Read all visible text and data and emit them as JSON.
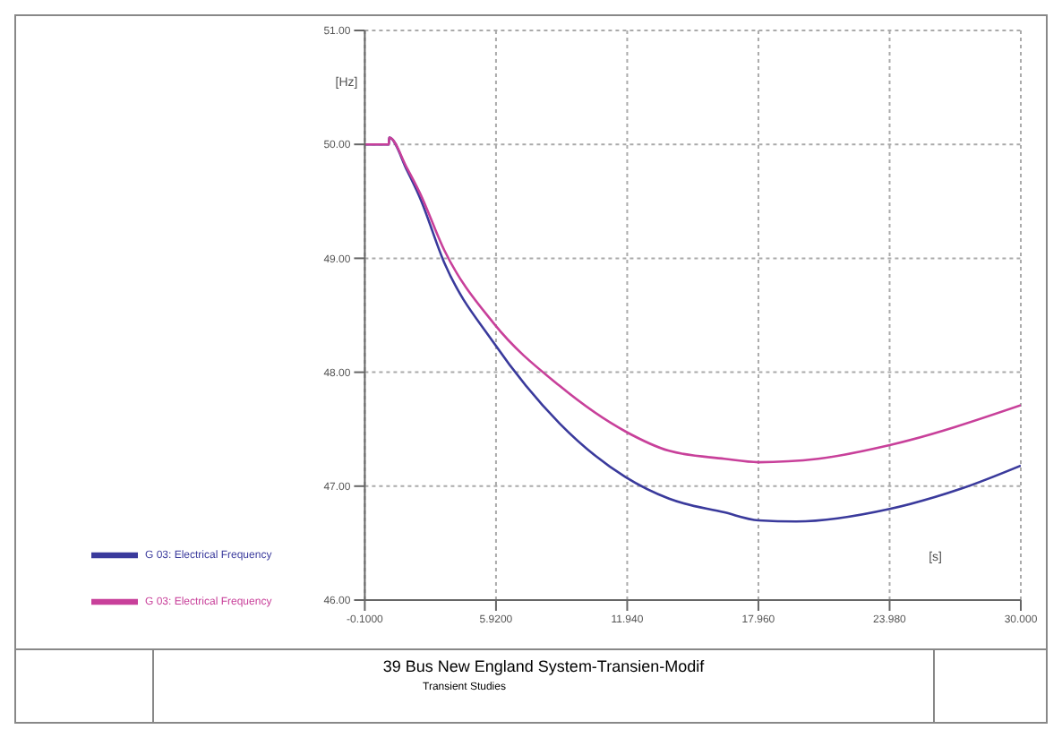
{
  "chart_data": {
    "type": "line",
    "title": "39 Bus New England System-Transien-Modif",
    "subtitle": "Transient Studies",
    "xlabel": "[s]",
    "ylabel": "[Hz]",
    "xlim": [
      -0.1,
      30
    ],
    "xticks": [
      {
        "value": -0.1,
        "label": "-0.1000"
      },
      {
        "value": 5.92,
        "label": "5.9200"
      },
      {
        "value": 11.94,
        "label": "11.940"
      },
      {
        "value": 17.96,
        "label": "17.960"
      },
      {
        "value": 23.98,
        "label": "23.980"
      },
      {
        "value": 30,
        "label": "30.000"
      }
    ],
    "ylim": [
      46,
      51
    ],
    "yticks": [
      {
        "value": 46,
        "label": "46.00"
      },
      {
        "value": 47,
        "label": "47.00"
      },
      {
        "value": 48,
        "label": "48.00"
      },
      {
        "value": 49,
        "label": "49.00"
      },
      {
        "value": 50,
        "label": "50.00"
      },
      {
        "value": 51,
        "label": "51.00"
      }
    ],
    "grid": true,
    "legend": "bottom left",
    "line_style": "solid",
    "marker": "none",
    "series": [
      {
        "name": "G 03: Electrical Frequency",
        "color": "#3a3a9c",
        "x": [
          -0.1,
          1.0,
          1.02,
          1.84,
          2.41,
          3.55,
          5.81,
          8.84,
          11.86,
          13.86,
          16.4,
          17.96,
          19.7,
          23.98,
          27.3,
          30
        ],
        "values": [
          50.0,
          50.0,
          50.06,
          49.77,
          49.54,
          48.96,
          48.26,
          47.55,
          47.08,
          46.89,
          46.77,
          46.7,
          46.69,
          46.8,
          46.98,
          47.18
        ]
      },
      {
        "name": "G 03: Electrical Frequency",
        "color": "#c8409a",
        "x": [
          -0.1,
          1.0,
          1.02,
          1.84,
          2.41,
          3.55,
          5.81,
          8.84,
          11.86,
          13.86,
          16.4,
          17.96,
          20.7,
          23.98,
          30
        ],
        "values": [
          50.0,
          50.0,
          50.06,
          49.79,
          49.58,
          49.07,
          48.43,
          47.88,
          47.48,
          47.31,
          47.24,
          47.21,
          47.24,
          47.36,
          47.71
        ]
      }
    ]
  }
}
